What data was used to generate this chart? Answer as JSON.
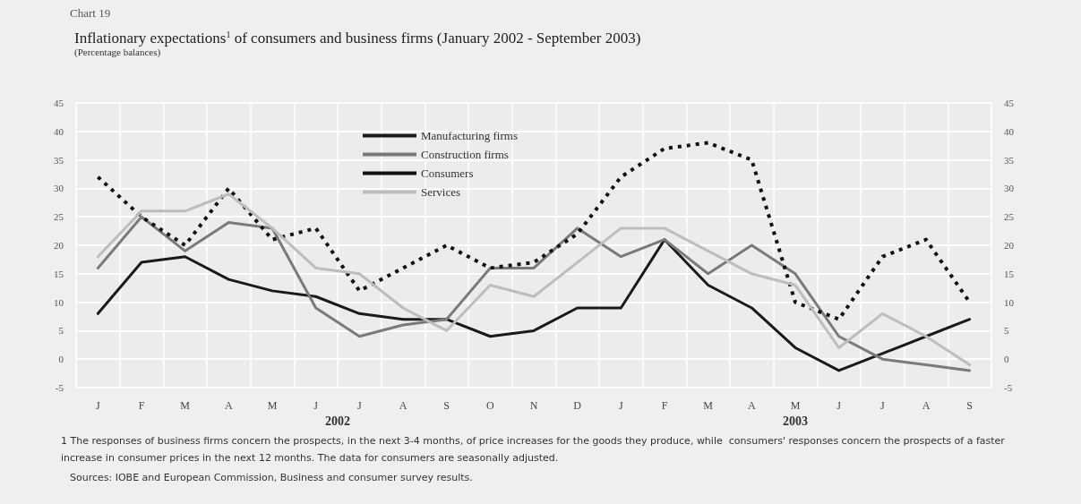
{
  "chart_data": {
    "type": "line",
    "title": "Inflationary expectations$^{1}$ of consumers and business firms (January 2002 - September 2003)",
    "subtitle": "(Percentage balances)",
    "categories": [
      "J",
      "F",
      "M",
      "A",
      "M",
      "J",
      "J",
      "A",
      "S",
      "O",
      "N",
      "D",
      "J",
      "F",
      "M",
      "A",
      "M",
      "J",
      "J",
      "A",
      "S"
    ],
    "series": [
      {
        "name": "Manufacturing firms",
        "color": "#1a1a1a",
        "values": [
          8,
          17,
          18,
          14,
          12,
          11,
          8,
          7,
          7,
          4,
          5,
          9,
          9,
          21,
          13,
          9,
          2,
          -2,
          1,
          4,
          7
        ]
      },
      {
        "name": "Construction firms",
        "color": "#7a7a7a",
        "values": [
          16,
          25,
          19,
          24,
          23,
          9,
          4,
          6,
          7,
          16,
          16,
          23,
          18,
          21,
          15,
          20,
          15,
          4,
          0,
          -1,
          -2
        ]
      },
      {
        "name": "Consumers",
        "color": "#111111",
        "line_style": "dashed",
        "values": [
          32,
          25,
          20,
          30,
          21,
          23,
          12,
          16,
          20,
          16,
          17,
          22,
          32,
          37,
          38,
          35,
          10,
          7,
          18,
          21,
          10
        ]
      },
      {
        "name": "Services",
        "color": "#bdbdbd",
        "values": [
          18,
          26,
          26,
          29,
          23,
          16,
          15,
          9,
          5,
          13,
          11,
          17,
          23,
          23,
          19,
          15,
          13,
          2,
          8,
          4,
          -1
        ]
      }
    ],
    "ylim": [
      -5,
      45
    ],
    "yticks": [
      -5,
      0,
      5,
      10,
      15,
      20,
      25,
      30,
      35,
      40,
      45
    ],
    "y2lim": [
      -5,
      45
    ],
    "y2ticks": [
      -5,
      0,
      5,
      10,
      15,
      20,
      25,
      30,
      35,
      40,
      45
    ],
    "grid": true,
    "legend": "top",
    "marker": "none",
    "line_style": "solid",
    "annotations": [
      "Chart 19",
      "2002",
      "2003",
      "1 The responses of business firms concern the prospects, in the next 3-4 months, of price increases for the goods they produce, while  consumers' responses concern the prospects of a faster increase in consumer prices in the next 12 months. The data for consumers are seasonally adjusted.",
      "Sources: IOBE and European Commission, Business and consumer survey results."
    ]
  }
}
